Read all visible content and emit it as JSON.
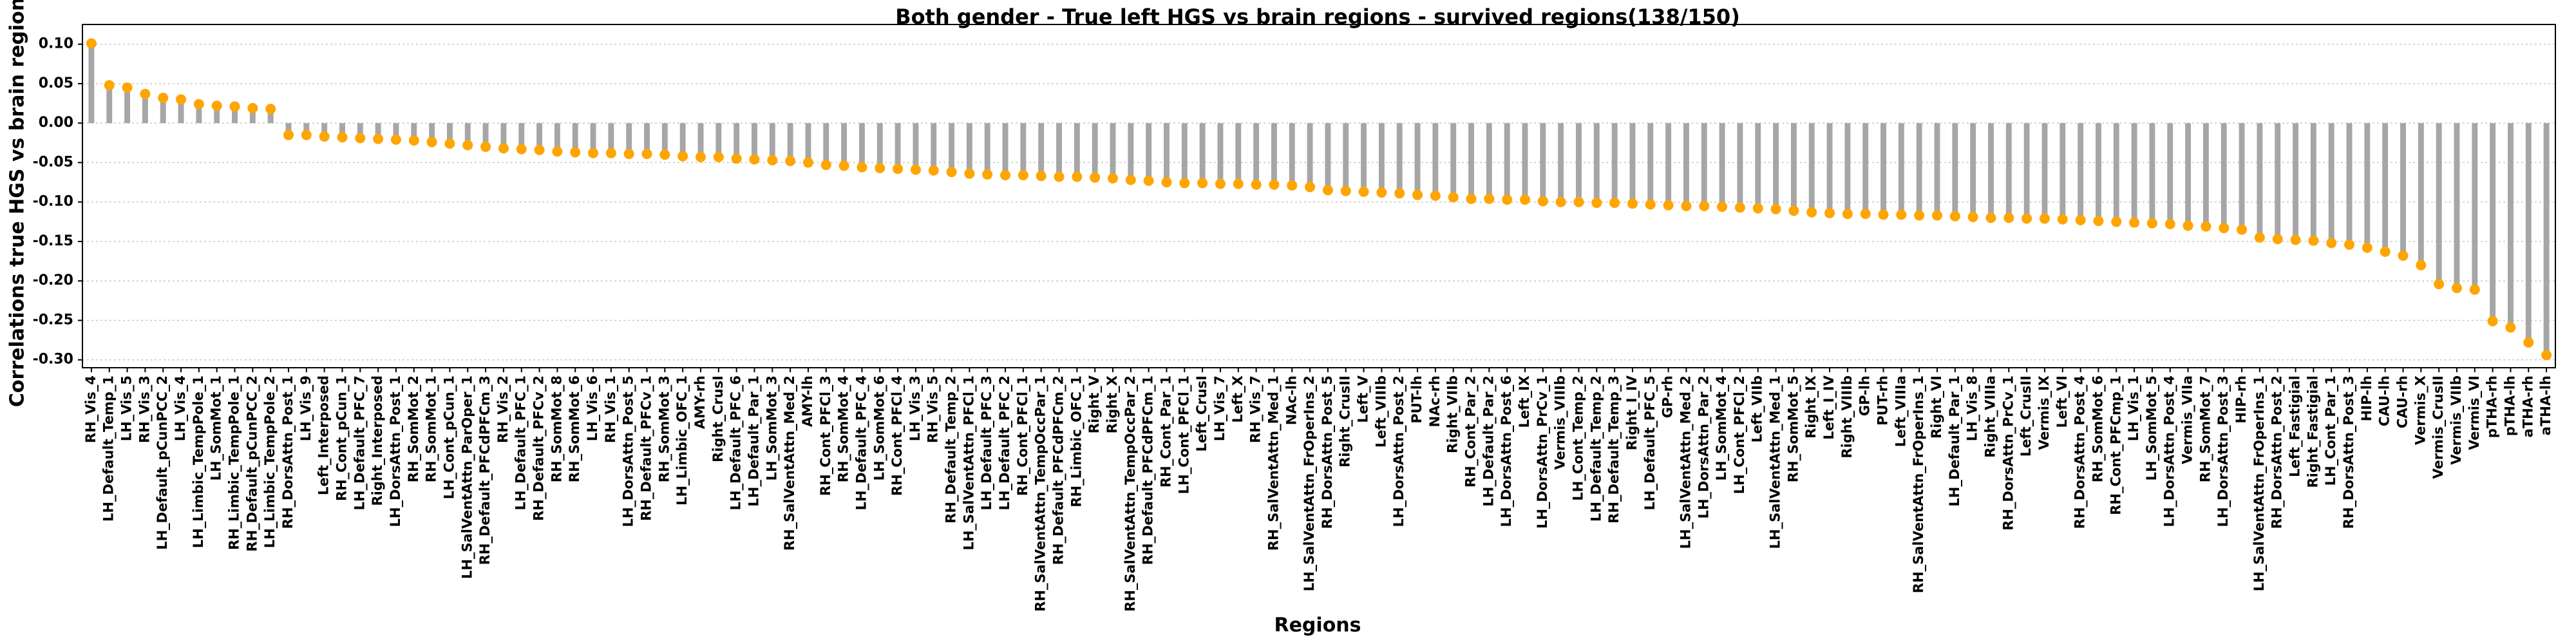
{
  "chart_data": {
    "type": "lollipop",
    "title": "Both gender - True left HGS vs brain regions - survived regions(138/150)",
    "x_label": "Regions",
    "y_label": "Correlations true HGS vs brain regions",
    "color": "#ffa500",
    "stem_color": "#a6a6a6",
    "grid": true,
    "ylim": [
      -0.31,
      0.125
    ],
    "yticks": [
      {
        "value": 0.1,
        "label": "0.10"
      },
      {
        "value": 0.05,
        "label": "0.05"
      },
      {
        "value": 0,
        "label": "0.00"
      },
      {
        "value": -0.05,
        "label": "-0.05"
      },
      {
        "value": -0.1,
        "label": "-0.10"
      },
      {
        "value": -0.15,
        "label": "-0.15"
      },
      {
        "value": -0.2,
        "label": "-0.20"
      },
      {
        "value": -0.25,
        "label": "-0.25"
      },
      {
        "value": -0.3,
        "label": "-0.30"
      }
    ],
    "categories": [
      "RH_Vis_4",
      "LH_Default_Temp_1",
      "LH_Vis_5",
      "RH_Vis_3",
      "LH_Default_pCunPCC_2",
      "LH_Vis_4",
      "LH_Limbic_TempPole_1",
      "LH_SomMot_1",
      "RH_Limbic_TempPole_1",
      "RH_Default_pCunPCC_2",
      "LH_Limbic_TempPole_2",
      "RH_DorsAttn_Post_1",
      "LH_Vis_9",
      "Left_Interposed",
      "RH_Cont_pCun_1",
      "LH_Default_PFC_7",
      "Right_Interposed",
      "LH_DorsAttn_Post_1",
      "RH_SomMot_2",
      "RH_SomMot_1",
      "LH_Cont_pCun_1",
      "LH_SalVentAttn_ParOper_1",
      "RH_Default_PFCdPFCm_3",
      "RH_Vis_2",
      "LH_Default_PFC_1",
      "RH_Default_PFCv_2",
      "RH_SomMot_8",
      "RH_SomMot_6",
      "LH_Vis_6",
      "RH_Vis_1",
      "LH_DorsAttn_Post_5",
      "RH_Default_PFCv_1",
      "RH_SomMot_3",
      "LH_Limbic_OFC_1",
      "AMY-rh",
      "Right_CrusI",
      "LH_Default_PFC_6",
      "LH_Default_Par_1",
      "LH_SomMot_3",
      "RH_SalVentAttn_Med_2",
      "AMY-lh",
      "RH_Cont_PFCl_3",
      "RH_SomMot_4",
      "LH_Default_PFC_4",
      "LH_SomMot_6",
      "RH_Cont_PFCl_4",
      "LH_Vis_3",
      "RH_Vis_5",
      "RH_Default_Temp_2",
      "LH_SalVentAttn_PFCl_1",
      "LH_Default_PFC_3",
      "LH_Default_PFC_2",
      "RH_Cont_PFCl_1",
      "RH_SalVentAttn_TempOccPar_1",
      "RH_Default_PFCdPFCm_2",
      "RH_Limbic_OFC_1",
      "Right_V",
      "Right_X",
      "RH_SalVentAttn_TempOccPar_2",
      "RH_Default_PFCdPFCm_1",
      "RH_Cont_Par_1",
      "LH_Cont_PFCl_1",
      "Left_CrusI",
      "LH_Vis_7",
      "Left_X",
      "RH_Vis_7",
      "RH_SalVentAttn_Med_1",
      "NAc-lh",
      "LH_SalVentAttn_FrOperIns_2",
      "RH_DorsAttn_Post_5",
      "Right_CrusII",
      "Left_V",
      "Left_VIIIb",
      "LH_DorsAttn_Post_2",
      "PUT-lh",
      "NAc-rh",
      "Right_VIIb",
      "RH_Cont_Par_2",
      "LH_Default_Par_2",
      "LH_DorsAttn_Post_6",
      "Left_IX",
      "LH_DorsAttn_PrCv_1",
      "Vermis_VIIIb",
      "LH_Cont_Temp_2",
      "LH_Default_Temp_2",
      "RH_Default_Temp_3",
      "Right_I_IV",
      "LH_Default_PFC_5",
      "GP-rh",
      "LH_SalVentAttn_Med_2",
      "LH_DorsAttn_Par_2",
      "LH_SomMot_4",
      "LH_Cont_PFCl_2",
      "Left_VIIb",
      "LH_SalVentAttn_Med_1",
      "RH_SomMot_5",
      "Right_IX",
      "Left_I_IV",
      "Right_VIIIb",
      "GP-lh",
      "PUT-rh",
      "Left_VIIIa",
      "RH_SalVentAttn_FrOperIns_1",
      "Right_VI",
      "LH_Default_Par_1",
      "LH_Vis_8",
      "Right_VIIIa",
      "RH_DorsAttn_PrCv_1",
      "Left_CrusII",
      "Vermis_IX",
      "Left_VI",
      "RH_DorsAttn_Post_4",
      "RH_SomMot_6",
      "RH_Cont_PFCmp_1",
      "LH_Vis_1",
      "LH_SomMot_5",
      "LH_DorsAttn_Post_4",
      "Vermis_VIIa",
      "RH_SomMot_7",
      "LH_DorsAttn_Post_3",
      "HIP-rh",
      "LH_SalVentAttn_FrOperIns_1",
      "RH_DorsAttn_Post_2",
      "Left_Fastigial",
      "Right_Fastigial",
      "LH_Cont_Par_1",
      "RH_DorsAttn_Post_3",
      "HIP-lh",
      "CAU-lh",
      "CAU-rh",
      "Vermis_X",
      "Vermis_CrusII",
      "Vermis_VIIb",
      "Vermis_VI",
      "pTHA-rh",
      "pTHA-lh",
      "aTHA-rh",
      "aTHA-lh"
    ],
    "values": [
      0.101,
      0.048,
      0.045,
      0.037,
      0.032,
      0.03,
      0.024,
      0.022,
      0.021,
      0.019,
      0.018,
      -0.015,
      -0.015,
      -0.017,
      -0.018,
      -0.019,
      -0.02,
      -0.021,
      -0.022,
      -0.024,
      -0.026,
      -0.028,
      -0.03,
      -0.032,
      -0.033,
      -0.034,
      -0.036,
      -0.037,
      -0.038,
      -0.038,
      -0.039,
      -0.039,
      -0.04,
      -0.042,
      -0.043,
      -0.043,
      -0.045,
      -0.046,
      -0.047,
      -0.048,
      -0.05,
      -0.053,
      -0.054,
      -0.056,
      -0.057,
      -0.058,
      -0.059,
      -0.06,
      -0.062,
      -0.064,
      -0.065,
      -0.066,
      -0.066,
      -0.067,
      -0.068,
      -0.068,
      -0.069,
      -0.07,
      -0.072,
      -0.073,
      -0.075,
      -0.076,
      -0.076,
      -0.077,
      -0.077,
      -0.078,
      -0.078,
      -0.079,
      -0.081,
      -0.085,
      -0.086,
      -0.087,
      -0.088,
      -0.089,
      -0.091,
      -0.092,
      -0.094,
      -0.096,
      -0.096,
      -0.097,
      -0.097,
      -0.099,
      -0.1,
      -0.1,
      -0.101,
      -0.101,
      -0.102,
      -0.103,
      -0.104,
      -0.105,
      -0.105,
      -0.106,
      -0.107,
      -0.108,
      -0.109,
      -0.111,
      -0.113,
      -0.114,
      -0.115,
      -0.115,
      -0.116,
      -0.116,
      -0.117,
      -0.117,
      -0.118,
      -0.119,
      -0.12,
      -0.12,
      -0.121,
      -0.121,
      -0.122,
      -0.123,
      -0.124,
      -0.125,
      -0.126,
      -0.127,
      -0.128,
      -0.13,
      -0.131,
      -0.133,
      -0.135,
      -0.145,
      -0.147,
      -0.148,
      -0.149,
      -0.152,
      -0.154,
      -0.158,
      -0.163,
      -0.168,
      -0.18,
      -0.204,
      -0.209,
      -0.211,
      -0.251,
      -0.259,
      -0.278,
      -0.294
    ]
  }
}
